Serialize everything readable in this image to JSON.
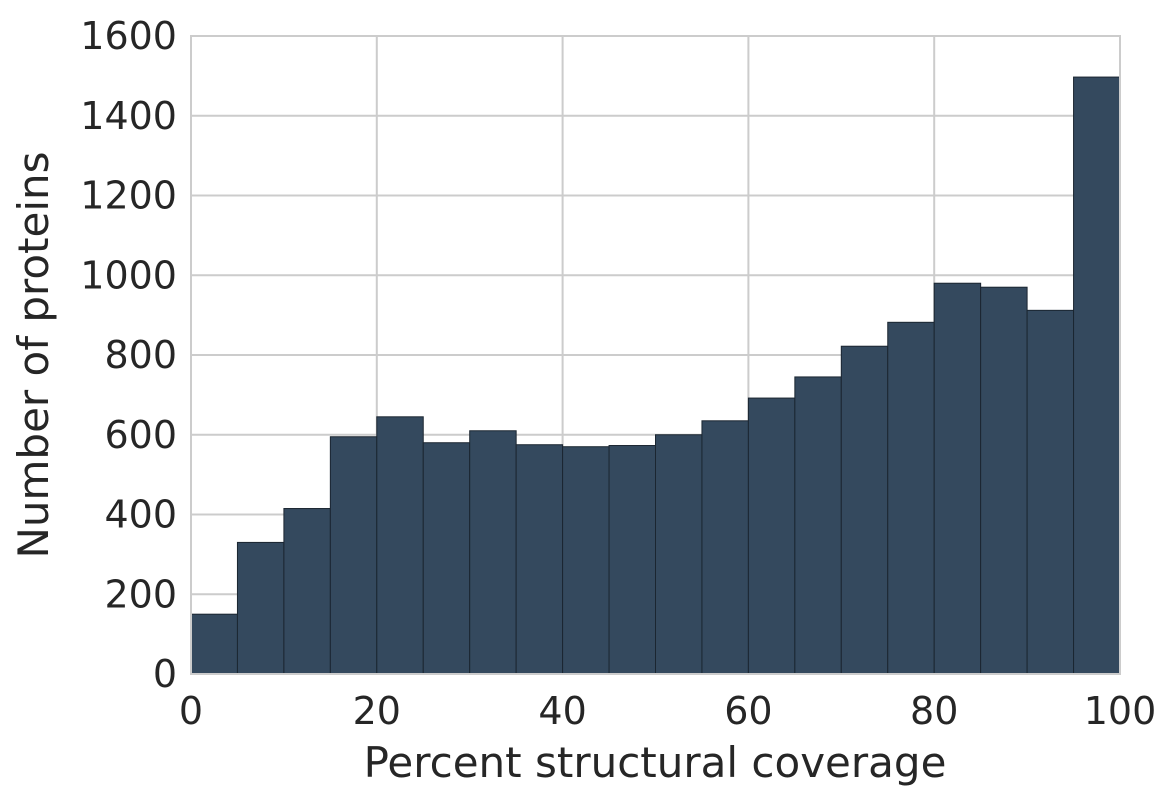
{
  "chart_data": {
    "type": "bar",
    "title": "",
    "xlabel": "Percent structural coverage",
    "ylabel": "Number of proteins",
    "xlim": [
      0,
      100
    ],
    "ylim": [
      0,
      1600
    ],
    "xticks": [
      0,
      20,
      40,
      60,
      80,
      100
    ],
    "yticks": [
      0,
      200,
      400,
      600,
      800,
      1000,
      1200,
      1400,
      1600
    ],
    "grid": true,
    "legend": "none",
    "bin_edges": [
      0,
      5,
      10,
      15,
      20,
      25,
      30,
      35,
      40,
      45,
      50,
      55,
      60,
      65,
      70,
      75,
      80,
      85,
      90,
      95,
      100
    ],
    "values": [
      150,
      330,
      415,
      595,
      645,
      580,
      610,
      575,
      570,
      573,
      600,
      635,
      692,
      745,
      822,
      882,
      980,
      970,
      912,
      1497
    ],
    "bar_color": "#34495e",
    "bar_edge_color": "#1b2631"
  }
}
